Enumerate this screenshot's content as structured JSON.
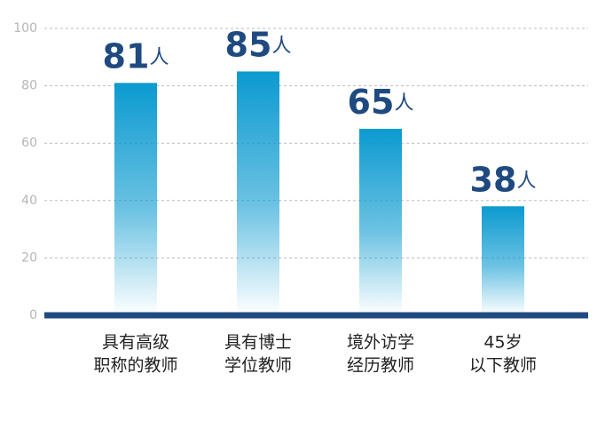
{
  "chart_data": {
    "type": "bar",
    "categories": [
      [
        "具有高级",
        "职称的教师"
      ],
      [
        "具有博士",
        "学位教师"
      ],
      [
        "境外访学",
        "经历教师"
      ],
      [
        "45岁",
        "以下教师"
      ]
    ],
    "values": [
      81,
      85,
      65,
      38
    ],
    "value_labels": [
      "81人",
      "85人",
      "65人",
      "38人"
    ],
    "color": "#0b9ad0",
    "label_color": "#1f4a80",
    "axis_color": "#1f4a80",
    "ylim": [
      0,
      100
    ],
    "yticks": [
      0,
      20,
      40,
      60,
      80,
      100
    ],
    "grid": true
  }
}
